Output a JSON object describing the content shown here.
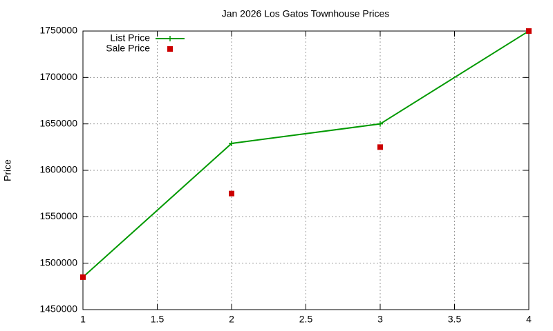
{
  "chart_data": {
    "type": "line",
    "title": "Jan 2026 Los Gatos Townhouse Prices",
    "y_label": "Price",
    "x": [
      1,
      2,
      3,
      4
    ],
    "series": [
      {
        "name": "List Price",
        "color": "#009900",
        "style": "linespoints",
        "values": [
          1485000,
          1629000,
          1650000,
          1750000
        ]
      },
      {
        "name": "Sale Price",
        "color": "#cc0000",
        "style": "points",
        "values": [
          1485000,
          1575000,
          1625000,
          1750000
        ]
      }
    ],
    "xlim": [
      1,
      4
    ],
    "xticks": [
      1,
      1.5,
      2,
      2.5,
      3,
      3.5,
      4
    ],
    "ylim": [
      1450000,
      1750000
    ],
    "yticks": [
      1450000,
      1500000,
      1550000,
      1600000,
      1650000,
      1700000,
      1750000
    ],
    "grid": true,
    "legend": "top-left"
  }
}
